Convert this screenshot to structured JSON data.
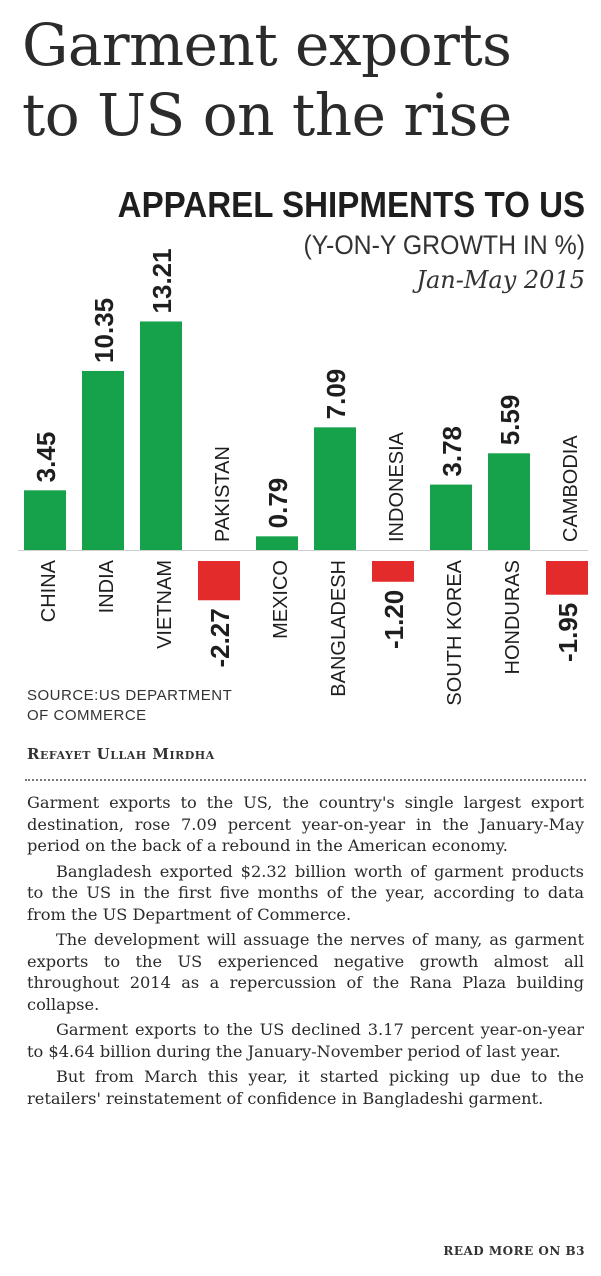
{
  "headline": {
    "line1": "Garment exports",
    "line2": "to US on the rise"
  },
  "chart_data": {
    "type": "bar",
    "title": "APPAREL SHIPMENTS TO US",
    "subtitle": "(Y-ON-Y GROWTH IN %)",
    "period": "Jan-May 2015",
    "categories": [
      "CHINA",
      "INDIA",
      "VIETNAM",
      "PAKISTAN",
      "MEXICO",
      "BANGLADESH",
      "INDONESIA",
      "SOUTH KOREA",
      "HONDURAS",
      "CAMBODIA"
    ],
    "values": [
      3.45,
      10.35,
      13.21,
      -2.27,
      0.79,
      7.09,
      -1.2,
      3.78,
      5.59,
      -1.95
    ],
    "value_labels": [
      "3.45",
      "10.35",
      "13.21",
      "-2.27",
      "0.79",
      "7.09",
      "-1.20",
      "3.78",
      "5.59",
      "-1.95"
    ],
    "colors": {
      "positive": "#16a14b",
      "negative": "#e42b2b"
    },
    "xlabel": "",
    "ylabel": ""
  },
  "source": {
    "line1": "SOURCE:US DEPARTMENT",
    "line2": "OF COMMERCE"
  },
  "byline": "Refayet Ullah Mirdha",
  "article": {
    "paragraphs": [
      "Garment exports to the US, the country's single largest export destination, rose 7.09 percent year-on-year in the January-May period on the back of a rebound in the American economy.",
      "Bangladesh exported $2.32 billion worth of garment products to the US in the first five months of the year, according to data from the US Department of Commerce.",
      "The development will assuage the nerves of many, as garment exports to the US experienced negative growth almost all throughout 2014 as a repercussion of the Rana Plaza building collapse.",
      "Garment exports to the US declined 3.17 percent year-on-year to $4.64 billion during the January-November period of last year.",
      "But from March this year, it started picking up due to the retailers' reinstatement of confidence in Bangladeshi garment."
    ]
  },
  "read_more": "READ MORE ON B3"
}
